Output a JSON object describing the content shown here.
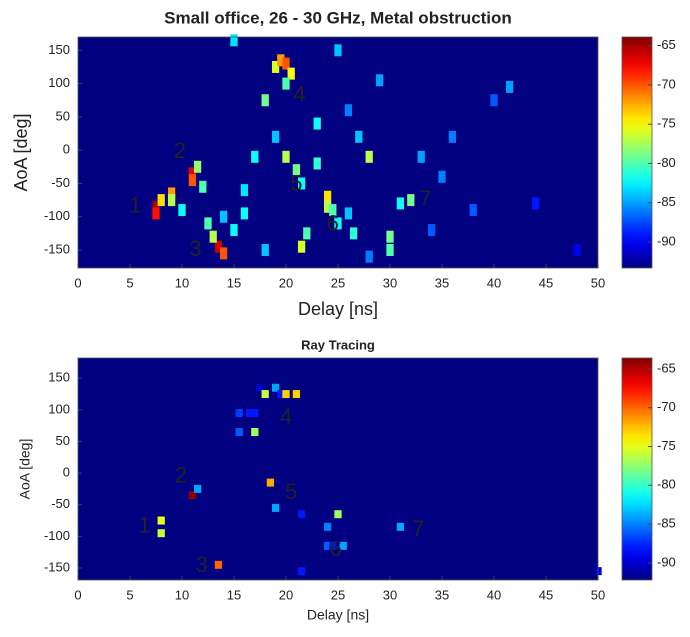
{
  "chart_data": [
    {
      "type": "heatmap",
      "title": "Small office, 26 - 30 GHz, Metal obstruction",
      "xlabel": "Delay [ns]",
      "ylabel": "AoA [deg]",
      "xlim": [
        0,
        50
      ],
      "xticks": [
        0,
        5,
        10,
        15,
        20,
        25,
        30,
        35,
        40,
        45,
        50
      ],
      "ylim": [
        -177,
        170
      ],
      "yticks": [
        -150,
        -100,
        -50,
        0,
        50,
        100,
        150
      ],
      "clim": [
        -93.3,
        -63.9
      ],
      "cticks": [
        -90,
        -85,
        -80,
        -75,
        -70,
        -65
      ],
      "x": [
        7.5,
        7.5,
        8,
        9,
        9,
        10,
        11,
        11,
        11.5,
        12,
        13.5,
        14,
        13,
        15,
        12.5,
        16,
        15,
        18,
        19,
        19.5,
        20,
        20.5,
        20,
        21,
        20,
        21.5,
        22,
        21.5,
        23,
        24,
        24,
        24.5,
        25,
        26,
        26.5,
        27,
        28,
        30,
        30,
        31,
        32,
        33,
        35,
        38,
        36,
        40,
        41.5,
        44,
        48,
        25,
        29,
        23,
        19,
        17,
        16,
        14,
        26,
        34,
        28,
        18
      ],
      "y": [
        -85,
        -95,
        -75,
        -65,
        -75,
        -90,
        -35,
        -45,
        -25,
        -55,
        -145,
        -155,
        -130,
        -120,
        -110,
        -95,
        165,
        75,
        125,
        135,
        130,
        115,
        100,
        -30,
        -10,
        -50,
        -125,
        -145,
        -20,
        -70,
        -85,
        -90,
        -110,
        -95,
        -125,
        20,
        -10,
        -130,
        -150,
        -80,
        -75,
        -10,
        -40,
        -90,
        20,
        75,
        95,
        -80,
        -150,
        150,
        105,
        40,
        20,
        -10,
        -60,
        -100,
        60,
        -120,
        -160,
        -150
      ],
      "values": [
        -65,
        -68,
        -74,
        -72,
        -77,
        -82,
        -67,
        -70,
        -78,
        -80,
        -66,
        -70,
        -77,
        -82,
        -80,
        -82,
        -83,
        -79,
        -76,
        -72,
        -70,
        -75,
        -80,
        -79,
        -77,
        -82,
        -80,
        -76,
        -81,
        -74,
        -77,
        -80,
        -82,
        -84,
        -81,
        -84,
        -77,
        -79,
        -80,
        -82,
        -79,
        -85,
        -86,
        -87,
        -86,
        -87,
        -85,
        -89,
        -90,
        -84,
        -85,
        -82,
        -84,
        -82,
        -83,
        -84,
        -86,
        -87,
        -86,
        -84
      ],
      "annotations": [
        {
          "text": "1",
          "x": 5.5,
          "y": -85
        },
        {
          "text": "2",
          "x": 9.8,
          "y": -3
        },
        {
          "text": "3",
          "x": 11.3,
          "y": -150
        },
        {
          "text": "4",
          "x": 21.3,
          "y": 82
        },
        {
          "text": "5",
          "x": 21,
          "y": -52
        },
        {
          "text": "6",
          "x": 24.5,
          "y": -112
        },
        {
          "text": "7",
          "x": 33.4,
          "y": -75
        }
      ],
      "annotation_color": "#e8202a"
    },
    {
      "type": "heatmap",
      "title": "Ray Tracing",
      "xlabel": "Delay [ns]",
      "ylabel": "AoA [deg]",
      "xlim": [
        0,
        50
      ],
      "xticks": [
        0,
        5,
        10,
        15,
        20,
        25,
        30,
        35,
        40,
        45,
        50
      ],
      "ylim": [
        -169,
        182
      ],
      "yticks": [
        -150,
        -100,
        -50,
        0,
        50,
        100,
        150
      ],
      "clim": [
        -92.2,
        -63.6
      ],
      "cticks": [
        -90,
        -85,
        -80,
        -75,
        -70,
        -65
      ],
      "x": [
        8,
        8,
        11,
        11.5,
        13.5,
        15.5,
        16.5,
        17,
        15.5,
        17,
        17.5,
        18,
        19,
        19.5,
        20,
        21,
        18.5,
        19,
        21.5,
        21.5,
        24,
        24,
        24.5,
        25,
        25.5,
        31,
        50
      ],
      "y": [
        -75,
        -95,
        -35,
        -25,
        -145,
        95,
        95,
        95,
        65,
        65,
        135,
        125,
        135,
        125,
        125,
        125,
        -15,
        -55,
        -65,
        -155,
        -85,
        -115,
        -115,
        -65,
        -115,
        -85,
        -155
      ],
      "values": [
        -75,
        -76,
        -64,
        -84,
        -70,
        -87,
        -88,
        -88,
        -86,
        -77,
        -90,
        -76,
        -84,
        -88,
        -73,
        -73,
        -72,
        -84,
        -88,
        -88,
        -85,
        -86,
        -88,
        -77,
        -84,
        -84,
        -90
      ],
      "annotations": [
        {
          "text": "1",
          "x": 6.4,
          "y": -85
        },
        {
          "text": "2",
          "x": 9.9,
          "y": -6
        },
        {
          "text": "3",
          "x": 11.9,
          "y": -147
        },
        {
          "text": "4",
          "x": 20,
          "y": 87
        },
        {
          "text": "5",
          "x": 20.5,
          "y": -32
        },
        {
          "text": "6",
          "x": 24.8,
          "y": -122
        },
        {
          "text": "7",
          "x": 32.7,
          "y": -90
        }
      ],
      "annotation_color": "#e8202a"
    }
  ]
}
